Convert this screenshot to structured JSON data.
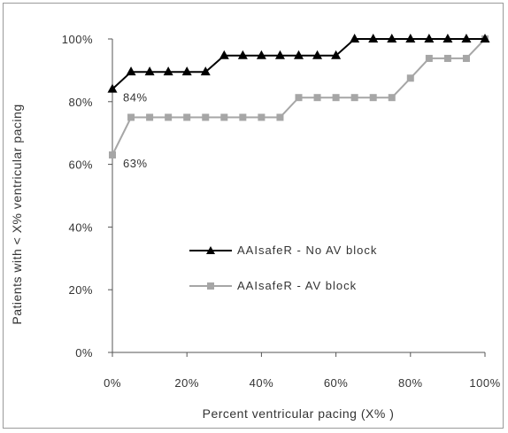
{
  "chart_data": {
    "type": "line",
    "title": "",
    "xlabel": "Percent ventricular pacing (X% )",
    "ylabel": "Patients with < X% ventricular pacing",
    "xlim": [
      0,
      100
    ],
    "ylim": [
      0,
      100
    ],
    "x_ticks": [
      "0%",
      "20%",
      "40%",
      "60%",
      "80%",
      "100%"
    ],
    "y_ticks": [
      "0%",
      "20%",
      "40%",
      "60%",
      "80%",
      "100%"
    ],
    "grid": false,
    "legend_position": "center",
    "series": [
      {
        "name": "AAIsafeR - No AV block",
        "color": "#000000",
        "marker": "triangle",
        "x": [
          0,
          5,
          10,
          15,
          20,
          25,
          30,
          35,
          40,
          45,
          50,
          55,
          60,
          65,
          70,
          75,
          80,
          85,
          90,
          95,
          100
        ],
        "y": [
          84,
          89.5,
          89.5,
          89.5,
          89.5,
          89.5,
          94.7,
          94.7,
          94.7,
          94.7,
          94.7,
          94.7,
          94.7,
          100,
          100,
          100,
          100,
          100,
          100,
          100,
          100
        ]
      },
      {
        "name": "AAIsafeR - AV block",
        "color": "#a6a6a6",
        "marker": "square",
        "x": [
          0,
          5,
          10,
          15,
          20,
          25,
          30,
          35,
          40,
          45,
          50,
          55,
          60,
          65,
          70,
          75,
          80,
          85,
          90,
          95,
          100
        ],
        "y": [
          63,
          75,
          75,
          75,
          75,
          75,
          75,
          75,
          75,
          75,
          81.3,
          81.3,
          81.3,
          81.3,
          81.3,
          81.3,
          87.5,
          93.8,
          93.8,
          93.8,
          100
        ]
      }
    ],
    "annotations": [
      {
        "text": "84%",
        "x": 0,
        "y": 84,
        "series": 0
      },
      {
        "text": "63%",
        "x": 0,
        "y": 63,
        "series": 1
      }
    ]
  }
}
